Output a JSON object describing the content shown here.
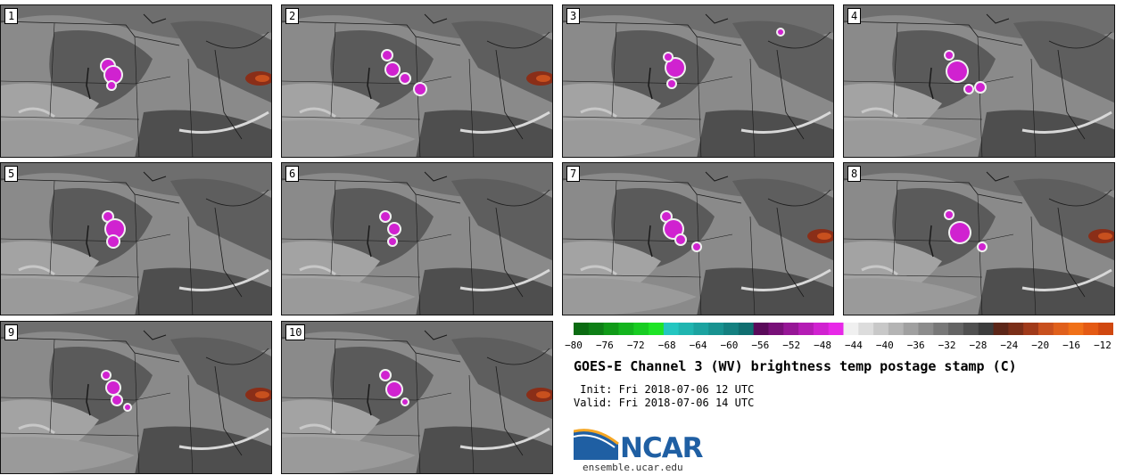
{
  "panels": [
    {
      "label": "1",
      "warm": true,
      "cores": [
        [
          120,
          68,
          7
        ],
        [
          126,
          78,
          9
        ],
        [
          124,
          90,
          4
        ]
      ]
    },
    {
      "label": "2",
      "warm": true,
      "cores": [
        [
          118,
          56,
          5
        ],
        [
          124,
          72,
          7
        ],
        [
          138,
          82,
          5
        ],
        [
          155,
          94,
          6
        ]
      ]
    },
    {
      "label": "3",
      "warm": false,
      "cores": [
        [
          126,
          70,
          10
        ],
        [
          118,
          58,
          4
        ],
        [
          122,
          88,
          4
        ],
        [
          244,
          30,
          3
        ]
      ]
    },
    {
      "label": "4",
      "warm": false,
      "cores": [
        [
          127,
          74,
          11
        ],
        [
          118,
          56,
          4
        ],
        [
          140,
          94,
          4
        ],
        [
          153,
          92,
          5
        ]
      ]
    },
    {
      "label": "5",
      "warm": false,
      "cores": [
        [
          120,
          60,
          5
        ],
        [
          128,
          74,
          10
        ],
        [
          126,
          88,
          6
        ]
      ]
    },
    {
      "label": "6",
      "warm": false,
      "cores": [
        [
          116,
          60,
          5
        ],
        [
          126,
          74,
          6
        ],
        [
          124,
          88,
          4
        ]
      ]
    },
    {
      "label": "7",
      "warm": true,
      "cores": [
        [
          116,
          60,
          5
        ],
        [
          124,
          74,
          10
        ],
        [
          132,
          86,
          5
        ],
        [
          150,
          94,
          4
        ]
      ]
    },
    {
      "label": "8",
      "warm": true,
      "cores": [
        [
          118,
          58,
          4
        ],
        [
          130,
          78,
          11
        ],
        [
          155,
          94,
          4
        ]
      ]
    },
    {
      "label": "9",
      "warm": true,
      "cores": [
        [
          118,
          60,
          4
        ],
        [
          126,
          74,
          7
        ],
        [
          130,
          88,
          5
        ],
        [
          142,
          96,
          3
        ]
      ]
    },
    {
      "label": "10",
      "warm": true,
      "cores": [
        [
          116,
          60,
          5
        ],
        [
          126,
          76,
          8
        ],
        [
          138,
          90,
          3
        ]
      ]
    }
  ],
  "colorbar": {
    "colors": [
      "#0b6b12",
      "#0e7f16",
      "#109a18",
      "#14b41e",
      "#18cc22",
      "#1ee426",
      "#24c6c0",
      "#20b5b0",
      "#1ca3a0",
      "#189290",
      "#148080",
      "#106e70",
      "#5a0a5a",
      "#781078",
      "#961696",
      "#b41cb4",
      "#d022d0",
      "#e828e8",
      "#f0f0f0",
      "#dcdcdc",
      "#c8c8c8",
      "#b4b4b4",
      "#a0a0a0",
      "#8c8c8c",
      "#787878",
      "#646464",
      "#505050",
      "#3c3c3c",
      "#5c2618",
      "#7a2e18",
      "#a03a1a",
      "#c8501e",
      "#e0601c",
      "#f07018",
      "#e45a14",
      "#d04810"
    ],
    "ticks": [
      "−80",
      "−76",
      "−72",
      "−68",
      "−64",
      "−60",
      "−56",
      "−52",
      "−48",
      "−44",
      "−40",
      "−36",
      "−32",
      "−28",
      "−24",
      "−20",
      "−16",
      "−12"
    ]
  },
  "title": "GOES-E Channel 3 (WV) brightness temp postage stamp (C)",
  "init": " Init: Fri 2018-07-06 12 UTC",
  "valid": "Valid: Fri 2018-07-06 14 UTC",
  "logo_text": "NCAR",
  "site": "ensemble.ucar.edu"
}
